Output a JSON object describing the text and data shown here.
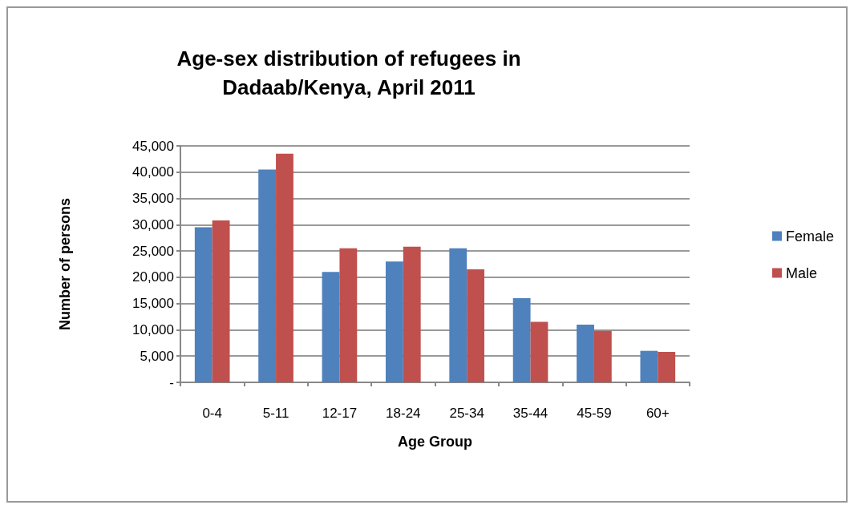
{
  "chart_data": {
    "type": "bar",
    "title": "Age-sex distribution of refugees in\nDadaab/Kenya, April 2011",
    "xlabel": "Age Group",
    "ylabel": "Number of persons",
    "categories": [
      "0-4",
      "5-11",
      "12-17",
      "18-24",
      "25-34",
      "35-44",
      "45-59",
      "60+"
    ],
    "series": [
      {
        "name": "Female",
        "color": "#4f81bd",
        "values": [
          29500,
          40500,
          21000,
          23000,
          25500,
          16000,
          11000,
          6000
        ]
      },
      {
        "name": "Male",
        "color": "#c0504d",
        "values": [
          30800,
          43500,
          25500,
          25800,
          21500,
          11500,
          9800,
          5800
        ]
      }
    ],
    "ylim": [
      0,
      45000
    ],
    "yticks": [
      {
        "value": 0,
        "label": "-"
      },
      {
        "value": 5000,
        "label": "5,000"
      },
      {
        "value": 10000,
        "label": "10,000"
      },
      {
        "value": 15000,
        "label": "15,000"
      },
      {
        "value": 20000,
        "label": "20,000"
      },
      {
        "value": 25000,
        "label": "25,000"
      },
      {
        "value": 30000,
        "label": "30,000"
      },
      {
        "value": 35000,
        "label": "35,000"
      },
      {
        "value": 40000,
        "label": "40,000"
      },
      {
        "value": 45000,
        "label": "45,000"
      }
    ],
    "grid": "y",
    "legend": "right"
  }
}
